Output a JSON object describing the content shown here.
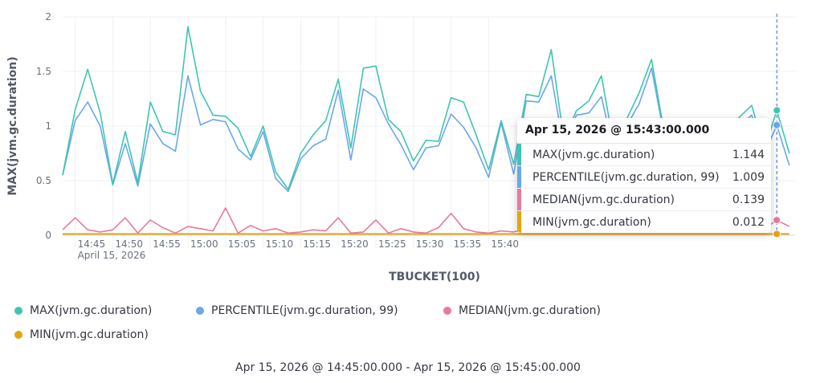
{
  "chart_data": {
    "type": "line",
    "xlabel": "TBUCKET(100)",
    "ylabel": "MAX(jvm.gc.duration)",
    "ylim": [
      0,
      2
    ],
    "yticks": [
      "0",
      "0.5",
      "1",
      "1.5",
      "2"
    ],
    "xticks": [
      "14:45",
      "14:50",
      "14:55",
      "15:00",
      "15:05",
      "15:10",
      "15:15",
      "15:20",
      "15:25",
      "15:30",
      "15:35",
      "15:40"
    ],
    "xdate_label": "April 15, 2026",
    "time_range": "Apr 15, 2026 @ 14:45:00.000 - Apr 15, 2026 @ 15:45:00.000",
    "interval_seconds": 100,
    "x_start": "14:43:20",
    "grid": true,
    "legend_position": "bottom",
    "series": [
      {
        "name": "MAX(jvm.gc.duration)",
        "color": "#3fc4b2",
        "values": [
          0.55,
          1.15,
          1.52,
          1.12,
          0.47,
          0.95,
          0.48,
          1.22,
          0.95,
          0.92,
          1.91,
          1.32,
          1.1,
          1.09,
          0.98,
          0.72,
          1.0,
          0.58,
          0.42,
          0.75,
          0.92,
          1.05,
          1.43,
          0.8,
          1.53,
          1.55,
          1.06,
          0.95,
          0.68,
          0.87,
          0.86,
          1.26,
          1.22,
          0.92,
          0.6,
          1.05,
          0.65,
          1.29,
          1.27,
          1.7,
          0.88,
          1.14,
          1.23,
          1.46,
          0.82,
          1.06,
          1.3,
          1.61,
          0.95,
          0.93,
          0.9,
          0.87,
          0.88,
          0.92,
          1.08,
          1.19,
          0.78,
          1.144,
          0.75
        ]
      },
      {
        "name": "PERCENTILE(jvm.gc.duration, 99)",
        "color": "#69a7ef",
        "values": [
          0.55,
          1.05,
          1.22,
          1.0,
          0.46,
          0.84,
          0.45,
          1.02,
          0.84,
          0.77,
          1.46,
          1.01,
          1.06,
          1.04,
          0.79,
          0.69,
          0.95,
          0.52,
          0.4,
          0.7,
          0.82,
          0.88,
          1.33,
          0.69,
          1.34,
          1.26,
          1.02,
          0.83,
          0.6,
          0.8,
          0.82,
          1.11,
          0.99,
          0.8,
          0.53,
          1.03,
          0.56,
          1.23,
          1.22,
          1.46,
          0.8,
          1.1,
          1.12,
          1.27,
          0.76,
          1.0,
          1.2,
          1.53,
          0.92,
          0.88,
          0.85,
          0.82,
          0.83,
          0.86,
          1.0,
          1.1,
          0.74,
          1.009,
          0.64
        ]
      },
      {
        "name": "MEDIAN(jvm.gc.duration)",
        "color": "#e8789e",
        "values": [
          0.05,
          0.16,
          0.05,
          0.03,
          0.05,
          0.16,
          0.02,
          0.14,
          0.07,
          0.02,
          0.08,
          0.06,
          0.04,
          0.25,
          0.02,
          0.09,
          0.04,
          0.06,
          0.02,
          0.03,
          0.05,
          0.04,
          0.16,
          0.02,
          0.03,
          0.14,
          0.02,
          0.06,
          0.03,
          0.02,
          0.07,
          0.2,
          0.06,
          0.03,
          0.02,
          0.04,
          0.03,
          0.06,
          0.05,
          0.03,
          0.04,
          0.05,
          0.03,
          0.04,
          0.03,
          0.05,
          0.04,
          0.06,
          0.03,
          0.04,
          0.03,
          0.05,
          0.04,
          0.03,
          0.05,
          0.04,
          0.06,
          0.139,
          0.08
        ]
      },
      {
        "name": "MIN(jvm.gc.duration)",
        "color": "#e6a50b",
        "values": [
          0.012,
          0.012,
          0.012,
          0.012,
          0.012,
          0.012,
          0.012,
          0.012,
          0.012,
          0.012,
          0.012,
          0.012,
          0.012,
          0.012,
          0.012,
          0.012,
          0.012,
          0.012,
          0.012,
          0.012,
          0.012,
          0.012,
          0.012,
          0.012,
          0.012,
          0.012,
          0.012,
          0.012,
          0.012,
          0.012,
          0.012,
          0.012,
          0.012,
          0.012,
          0.012,
          0.012,
          0.012,
          0.012,
          0.012,
          0.012,
          0.012,
          0.012,
          0.012,
          0.012,
          0.012,
          0.012,
          0.012,
          0.012,
          0.012,
          0.012,
          0.012,
          0.012,
          0.012,
          0.012,
          0.012,
          0.012,
          0.012,
          0.012,
          0.012
        ]
      }
    ],
    "crosshair_index": 57
  },
  "tooltip": {
    "title": "Apr 15, 2026 @ 15:43:00.000",
    "rows": [
      {
        "label": "MAX(jvm.gc.duration)",
        "value": "1.144",
        "color": "#3fc4b2"
      },
      {
        "label": "PERCENTILE(jvm.gc.duration, 99)",
        "value": "1.009",
        "color": "#69a7ef"
      },
      {
        "label": "MEDIAN(jvm.gc.duration)",
        "value": "0.139",
        "color": "#e8789e"
      },
      {
        "label": "MIN(jvm.gc.duration)",
        "value": "0.012",
        "color": "#e6a50b"
      }
    ]
  },
  "legend": {
    "items": [
      {
        "label": "MAX(jvm.gc.duration)",
        "color": "#3fc4b2"
      },
      {
        "label": "PERCENTILE(jvm.gc.duration, 99)",
        "color": "#69a7ef"
      },
      {
        "label": "MEDIAN(jvm.gc.duration)",
        "color": "#e8789e"
      },
      {
        "label": "MIN(jvm.gc.duration)",
        "color": "#e6a50b"
      }
    ]
  }
}
